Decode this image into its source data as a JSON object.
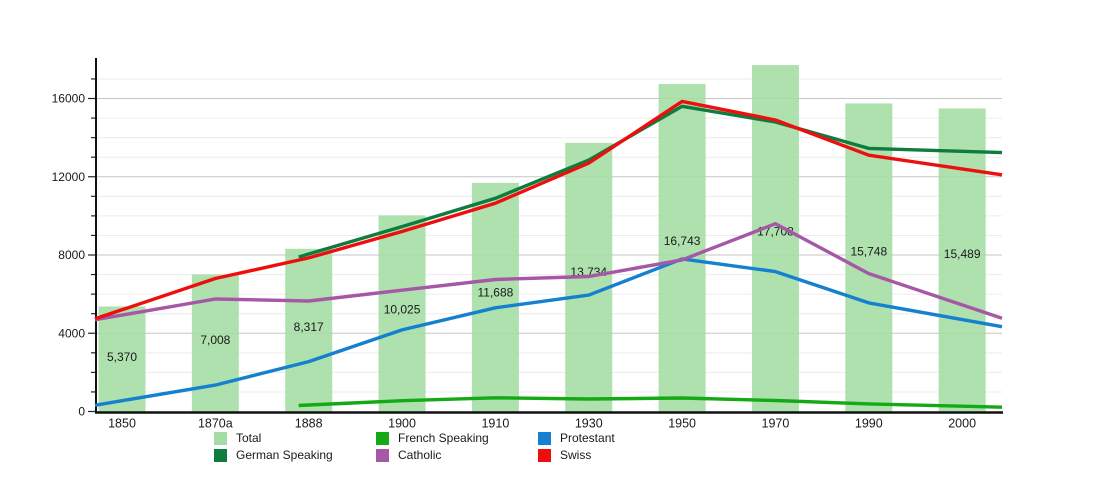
{
  "chart_data": {
    "type": "bar",
    "subtype": "combo-bar-line",
    "title": "",
    "xlabel": "",
    "ylabel": "",
    "categories": [
      "1850",
      "1870a",
      "1888",
      "1900",
      "1910",
      "1930",
      "1950",
      "1970",
      "1990",
      "2000"
    ],
    "y_ticks": [
      0,
      4000,
      8000,
      12000,
      16000
    ],
    "y_tick_labels": [
      "0",
      "4000",
      "8000",
      "12000",
      "16000"
    ],
    "y_minor_step": 1000,
    "ylim": [
      0,
      17400
    ],
    "y_gridline_max": 17000,
    "grid": "horizontal-only",
    "legend_position": "bottom",
    "bar_series": {
      "name": "Total",
      "color": "#a3dda3",
      "values": [
        5370,
        7008,
        8317,
        10025,
        11688,
        13734,
        16743,
        17708,
        15748,
        15489
      ],
      "labels": [
        "5,370",
        "7,008",
        "8,317",
        "10,025",
        "11,688",
        "13,734",
        "16,743",
        "17,708",
        "15,748",
        "15,489"
      ]
    },
    "series": [
      {
        "name": "German Speaking",
        "kind": "line",
        "color": "#0e7b3f",
        "values": [
          null,
          null,
          8050,
          9450,
          10900,
          12850,
          15600,
          14800,
          13450,
          13300
        ]
      },
      {
        "name": "French Speaking",
        "kind": "line",
        "color": "#15a915",
        "values": [
          null,
          null,
          330,
          550,
          700,
          640,
          690,
          560,
          390,
          270
        ]
      },
      {
        "name": "Protestant",
        "kind": "line",
        "color": "#1580d0",
        "values": [
          550,
          1350,
          2550,
          4170,
          5300,
          5950,
          7800,
          7150,
          5550,
          4700
        ]
      },
      {
        "name": "Catholic",
        "kind": "line",
        "color": "#a657a6",
        "values": [
          4930,
          5750,
          5650,
          6200,
          6750,
          6900,
          7750,
          9600,
          7050,
          5450
        ]
      },
      {
        "name": "Swiss",
        "kind": "line",
        "color": "#ee0e0e",
        "values": [
          5200,
          6800,
          7850,
          9200,
          10650,
          12700,
          15850,
          14900,
          13100,
          12400
        ]
      }
    ]
  },
  "legend": {
    "columns": [
      [
        {
          "label": "Total",
          "color": "#a3dda3"
        },
        {
          "label": "German Speaking",
          "color": "#0e7b3f"
        }
      ],
      [
        {
          "label": "French Speaking",
          "color": "#15a915"
        },
        {
          "label": "Catholic",
          "color": "#a657a6"
        }
      ],
      [
        {
          "label": "Protestant",
          "color": "#1580d0"
        },
        {
          "label": "Swiss",
          "color": "#ee0e0e"
        }
      ]
    ]
  }
}
